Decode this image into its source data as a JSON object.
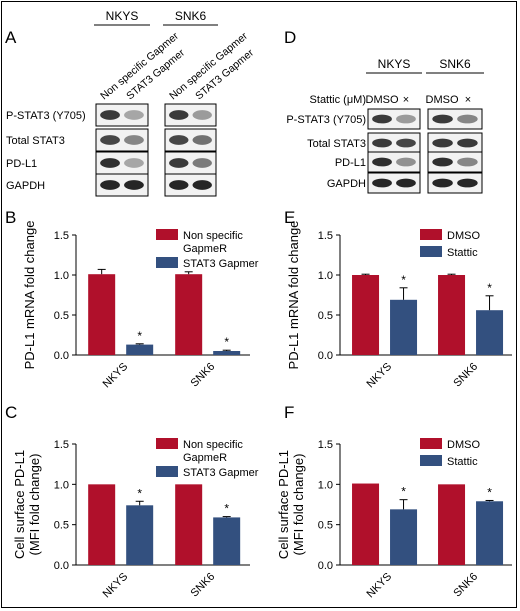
{
  "colors": {
    "red": "#b0102b",
    "blue": "#33507f",
    "axis": "#000000",
    "blot_dark": "#1a1a1a"
  },
  "panels": {
    "A": {
      "letter": "A",
      "cell_lines": [
        "NKYS",
        "SNK6"
      ],
      "lane_labels": [
        "Non specific Gapmer",
        "STAT3 Gapmer",
        "Non specific Gapmer",
        "STAT3 Gapmer"
      ],
      "row_labels": [
        "P-STAT3 (Y705)",
        "Total STAT3",
        "PD-L1",
        "GAPDH"
      ]
    },
    "D": {
      "letter": "D",
      "cell_lines": [
        "NKYS",
        "SNK6"
      ],
      "treatment_label": "Stattic (μM)",
      "lane_labels": [
        "DMSO",
        "×",
        "DMSO",
        "×"
      ],
      "row_labels": [
        "P-STAT3 (Y705)",
        "Total STAT3",
        "PD-L1",
        "GAPDH"
      ]
    }
  },
  "chart_data": [
    {
      "panel": "B",
      "type": "bar",
      "categories": [
        "NKYS",
        "SNK6"
      ],
      "series": [
        {
          "name": "Non specific GapmeR",
          "values": [
            1.01,
            1.01
          ],
          "errors": [
            0.06,
            0.03
          ],
          "color": "#b0102b"
        },
        {
          "name": "STAT3 Gapmer",
          "values": [
            0.13,
            0.05
          ],
          "errors": [
            0.01,
            0.01
          ],
          "color": "#33507f"
        }
      ],
      "significance": [
        "",
        "*",
        "",
        "*"
      ],
      "ylabel": "PD-L1 mRNA fold change",
      "ylim": [
        0,
        1.5
      ],
      "yticks": [
        "0.0",
        "0.5",
        "1.0",
        "1.5"
      ],
      "legend": [
        "Non specific",
        "GapmeR",
        "STAT3 Gapmer"
      ]
    },
    {
      "panel": "C",
      "type": "bar",
      "categories": [
        "NKYS",
        "SNK6"
      ],
      "series": [
        {
          "name": "Non specific GapmeR",
          "values": [
            1.0,
            1.0
          ],
          "errors": [
            0,
            0
          ],
          "color": "#b0102b"
        },
        {
          "name": "STAT3 Gapmer",
          "values": [
            0.74,
            0.59
          ],
          "errors": [
            0.05,
            0.01
          ],
          "color": "#33507f"
        }
      ],
      "significance": [
        "",
        "*",
        "",
        "*"
      ],
      "ylabel": "Cell surface PD-L1 (MFI fold change)",
      "ylabel_lines": [
        "Cell surface PD-L1",
        "(MFI fold change)"
      ],
      "ylim": [
        0,
        1.5
      ],
      "yticks": [
        "0.0",
        "0.5",
        "1.0",
        "1.5"
      ],
      "legend": [
        "Non specific",
        "GapmeR",
        "STAT3 Gapmer"
      ]
    },
    {
      "panel": "E",
      "type": "bar",
      "categories": [
        "NKYS",
        "SNK6"
      ],
      "series": [
        {
          "name": "DMSO",
          "values": [
            1.0,
            1.0
          ],
          "errors": [
            0.01,
            0.01
          ],
          "color": "#b0102b"
        },
        {
          "name": "Stattic",
          "values": [
            0.69,
            0.56
          ],
          "errors": [
            0.15,
            0.18
          ],
          "color": "#33507f"
        }
      ],
      "significance": [
        "",
        "*",
        "",
        "*"
      ],
      "ylabel": "PD-L1 mRNA fold change",
      "ylim": [
        0,
        1.5
      ],
      "yticks": [
        "0.0",
        "0.5",
        "1.0",
        "1.5"
      ],
      "legend": [
        "DMSO",
        "Stattic"
      ]
    },
    {
      "panel": "F",
      "type": "bar",
      "categories": [
        "NKYS",
        "SNK6"
      ],
      "series": [
        {
          "name": "DMSO",
          "values": [
            1.01,
            1.0
          ],
          "errors": [
            0,
            0
          ],
          "color": "#b0102b"
        },
        {
          "name": "Stattic",
          "values": [
            0.69,
            0.79
          ],
          "errors": [
            0.12,
            0.01
          ],
          "color": "#33507f"
        }
      ],
      "significance": [
        "",
        "*",
        "",
        "*"
      ],
      "ylabel": "Cell surface PD-L1 (MFI fold change)",
      "ylabel_lines": [
        "Cell surface PD-L1",
        "(MFI fold change)"
      ],
      "ylim": [
        0,
        1.5
      ],
      "yticks": [
        "0.0",
        "0.5",
        "1.0",
        "1.5"
      ],
      "legend": [
        "DMSO",
        "Stattic"
      ]
    }
  ]
}
